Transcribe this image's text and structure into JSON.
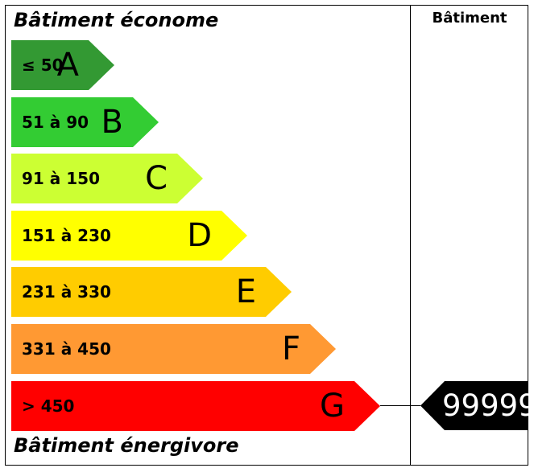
{
  "header": {
    "top": "Bâtiment économe",
    "bottom": "Bâtiment énergivore",
    "column": "Bâtiment"
  },
  "bands": [
    {
      "letter": "A",
      "range": "≤ 50",
      "color": "#339933"
    },
    {
      "letter": "B",
      "range": "51 à 90",
      "color": "#33cc33"
    },
    {
      "letter": "C",
      "range": "91 à 150",
      "color": "#ccff33"
    },
    {
      "letter": "D",
      "range": "151 à 230",
      "color": "#ffff00"
    },
    {
      "letter": "E",
      "range": "231 à 330",
      "color": "#ffcc00"
    },
    {
      "letter": "F",
      "range": "331 à 450",
      "color": "#ff9933"
    },
    {
      "letter": "G",
      "range": "> 450",
      "color": "#ff0000"
    }
  ],
  "marker": {
    "value": "99999",
    "band": "G",
    "color": "#000000"
  }
}
